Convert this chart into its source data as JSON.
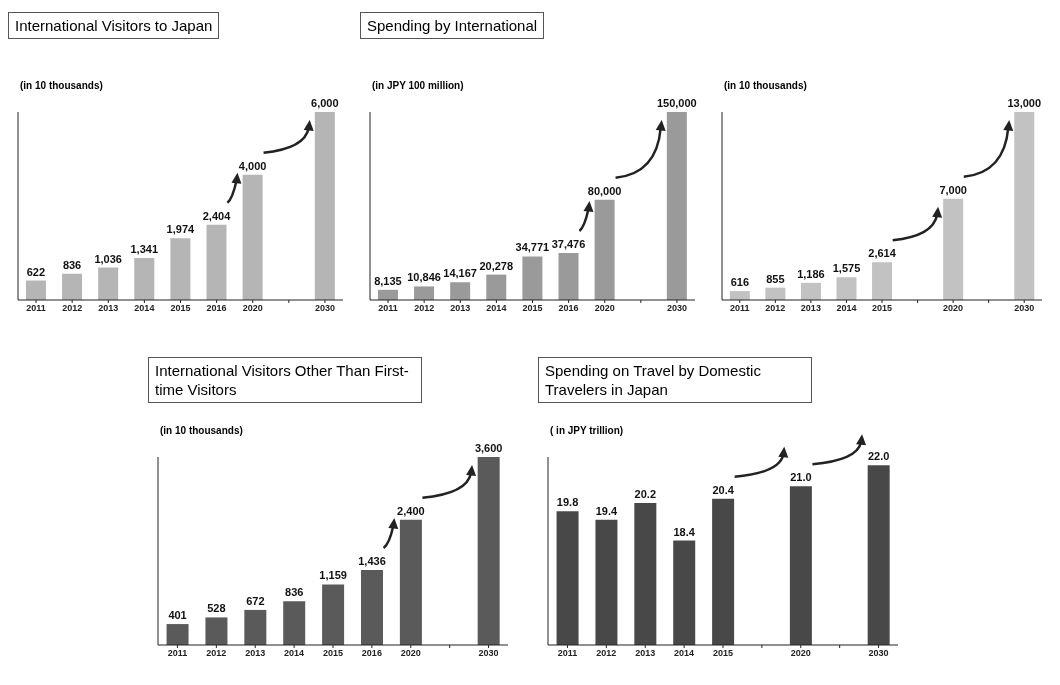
{
  "chart_data": [
    {
      "type": "bar",
      "title": "International Visitors to Japan",
      "ylabel": "(in 10 thousands)",
      "categories": [
        "2011",
        "2012",
        "2013",
        "2014",
        "2015",
        "2016",
        "2020",
        null,
        "2030"
      ],
      "values": [
        622,
        836,
        1036,
        1341,
        1974,
        2404,
        4000,
        null,
        6000
      ],
      "value_labels": [
        "622",
        "836",
        "1,036",
        "1,341",
        "1,974",
        "2,404",
        "4,000",
        null,
        "6,000"
      ],
      "color": "#b5b5b5"
    },
    {
      "type": "bar",
      "title": "Spending by International",
      "ylabel": "(in JPY 100 million)",
      "categories": [
        "2011",
        "2012",
        "2013",
        "2014",
        "2015",
        "2016",
        "2020",
        null,
        "2030"
      ],
      "values": [
        8135,
        10846,
        14167,
        20278,
        34771,
        37476,
        80000,
        null,
        150000
      ],
      "value_labels": [
        "8,135",
        "10,846",
        "14,167",
        "20,278",
        "34,771",
        "37,476",
        "80,000",
        null,
        "150,000"
      ],
      "color": "#9a9a9a"
    },
    {
      "type": "bar",
      "ylabel": "(in 10 thousands)",
      "categories": [
        "2011",
        "2012",
        "2013",
        "2014",
        "2015",
        null,
        "2020",
        null,
        "2030"
      ],
      "values": [
        616,
        855,
        1186,
        1575,
        2614,
        null,
        7000,
        null,
        13000
      ],
      "value_labels": [
        "616",
        "855",
        "1,186",
        "1,575",
        "2,614",
        null,
        "7,000",
        null,
        "13,000"
      ],
      "color": "#c2c2c2"
    },
    {
      "type": "bar",
      "title": "International Visitors Other Than First-time Visitors",
      "ylabel": "(in 10 thousands)",
      "categories": [
        "2011",
        "2012",
        "2013",
        "2014",
        "2015",
        "2016",
        "2020",
        null,
        "2030"
      ],
      "values": [
        401,
        528,
        672,
        836,
        1159,
        1436,
        2400,
        null,
        3600
      ],
      "value_labels": [
        "401",
        "528",
        "672",
        "836",
        "1,159",
        "1,436",
        "2,400",
        null,
        "3,600"
      ],
      "color": "#5a5a5a"
    },
    {
      "type": "bar",
      "title": "Spending on Travel by Domestic Travelers in Japan",
      "ylabel": "( in JPY trillion)",
      "categories": [
        "2011",
        "2012",
        "2013",
        "2014",
        "2015",
        null,
        "2020",
        null,
        "2030"
      ],
      "values": [
        19.8,
        19.4,
        20.2,
        18.4,
        20.4,
        null,
        21.0,
        null,
        22.0
      ],
      "value_labels": [
        "19.8",
        "19.4",
        "20.2",
        "18.4",
        "20.4",
        null,
        "21.0",
        null,
        "22.0"
      ],
      "color": "#484848",
      "ylim": [
        13.4,
        22.4
      ]
    }
  ]
}
